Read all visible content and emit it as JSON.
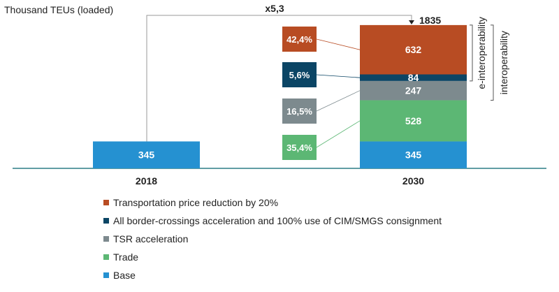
{
  "chart_data": {
    "type": "bar",
    "unit_label": "Thousand TEUs (loaded)",
    "categories": [
      "2018",
      "2030"
    ],
    "growth_label": "x5,3",
    "total_2030": "1835",
    "ylim": [
      0,
      1900
    ],
    "series": [
      {
        "name": "Base",
        "values": [
          345,
          345
        ],
        "color": "#2591d1"
      },
      {
        "name": "Trade",
        "values": [
          null,
          528
        ],
        "color": "#5cb774",
        "share": "35,4%"
      },
      {
        "name": "TSR acceleration",
        "values": [
          null,
          247
        ],
        "color": "#7d8a8e",
        "share": "16,5%"
      },
      {
        "name": "All border-crossings acceleration and 100% use of CIM/SMGS consignment",
        "values": [
          null,
          84
        ],
        "color": "#0b4565",
        "share": "5,6%"
      },
      {
        "name": "Transportation price reduction by 20%",
        "values": [
          null,
          632
        ],
        "color": "#b84c23",
        "share": "42,4%"
      }
    ],
    "brackets": [
      "e-interoperability",
      "interoperability"
    ],
    "legend_order": [
      4,
      3,
      2,
      1,
      0
    ],
    "grid": false,
    "legend_position": "bottom"
  }
}
